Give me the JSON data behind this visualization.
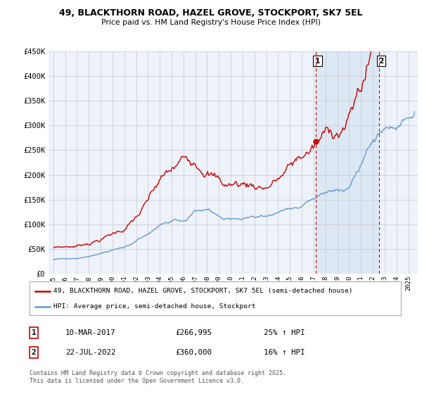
{
  "title": "49, BLACKTHORN ROAD, HAZEL GROVE, STOCKPORT, SK7 5EL",
  "subtitle": "Price paid vs. HM Land Registry's House Price Index (HPI)",
  "y_ticks": [
    0,
    50000,
    100000,
    150000,
    200000,
    250000,
    300000,
    350000,
    400000,
    450000
  ],
  "y_labels": [
    "£0",
    "£50K",
    "£100K",
    "£150K",
    "£200K",
    "£250K",
    "£300K",
    "£350K",
    "£400K",
    "£450K"
  ],
  "x_start_year": 1995,
  "x_end_year": 2025,
  "sale1_price": 266995,
  "sale1_label": "10-MAR-2017",
  "sale1_hpi": "25% ↑ HPI",
  "sale1_x": 2017.19,
  "sale2_price": 360000,
  "sale2_label": "22-JUL-2022",
  "sale2_hpi": "16% ↑ HPI",
  "sale2_x": 2022.55,
  "red_color": "#cc0000",
  "blue_color": "#6699cc",
  "shade_color": "#dde8f5",
  "bg_color": "#eef2fa",
  "legend_label_red": "49, BLACKTHORN ROAD, HAZEL GROVE, STOCKPORT, SK7 5EL (semi-detached house)",
  "legend_label_blue": "HPI: Average price, semi-detached house, Stockport",
  "footer": "Contains HM Land Registry data © Crown copyright and database right 2025.\nThis data is licensed under the Open Government Licence v3.0."
}
